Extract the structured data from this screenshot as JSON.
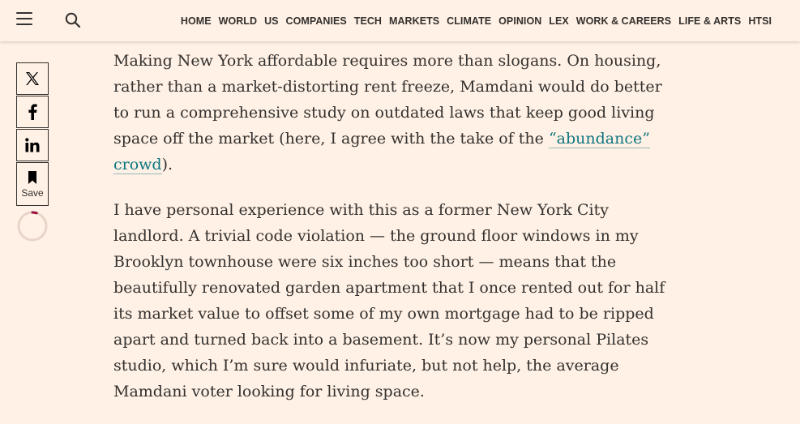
{
  "header": {
    "nav": [
      "HOME",
      "WORLD",
      "US",
      "COMPANIES",
      "TECH",
      "MARKETS",
      "CLIMATE",
      "OPINION",
      "LEX",
      "WORK & CAREERS",
      "LIFE & ARTS",
      "HTSI"
    ],
    "icons": {
      "menu": "hamburger-menu-icon",
      "search": "search-icon"
    }
  },
  "share": {
    "icons": [
      "x-logo-icon",
      "facebook-icon",
      "linkedin-icon",
      "bookmark-icon"
    ],
    "save_label": "Save",
    "reading_progress": 0.05
  },
  "article": {
    "p1_before": "Making New York affordable requires more than slogans. On housing, rather than a market-distorting rent freeze, Mamdani would do better to run a comprehensive study on outdated laws that keep good living space off the market (here, I agree with the take of the ",
    "p1_link": "“abundance” crowd",
    "p1_after": ").",
    "p2": "I have personal experience with this as a former New York City landlord. A trivial code violation — the ground floor windows in my Brooklyn townhouse were six inches too short — means that the beautifully renovated garden apartment that I once rented out for half its market value to offset some of my own mortgage had to be ripped apart and turned back into a basement. It’s now my personal Pilates studio, which I’m sure would infuriate, but not help, the average Mamdani voter looking for living space."
  },
  "colors": {
    "background": "#fff1e5",
    "text": "#33302e",
    "link": "#0d7680",
    "progress": "#990f3d"
  }
}
